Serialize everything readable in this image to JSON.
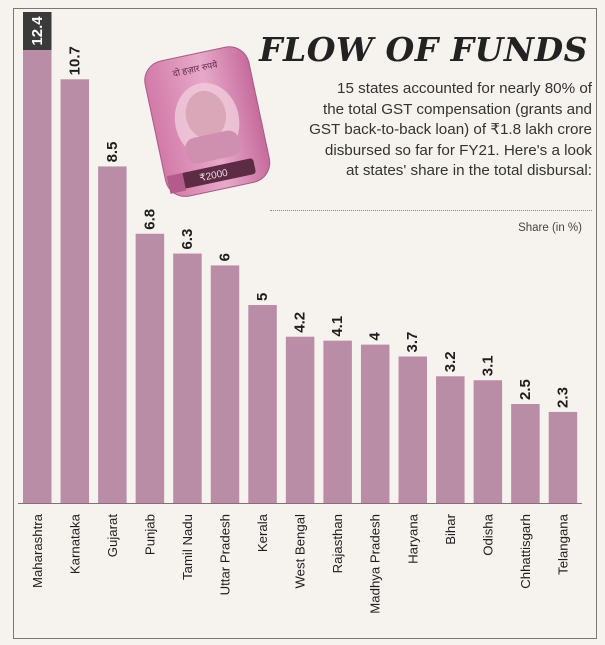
{
  "header": {
    "title": "FLOW OF FUNDS",
    "subtitle_lines": [
      "15 states accounted for nearly 80% of",
      "the total GST compensation (grants and",
      "GST back-to-back loan) of ₹1.8 lakh crore",
      "disbursed so far for FY21. Here's a look",
      "at states' share in the total disbursal:"
    ],
    "unit_label": "Share (in %)",
    "banknote_text": [
      "दो हज़ार रुपये",
      "₹2000"
    ]
  },
  "colors": {
    "background": "#f6f2ee",
    "bar": "#ba8da6",
    "bar_label_bg": "#3a3a3a"
  },
  "chart_data": {
    "type": "bar",
    "title": "FLOW OF FUNDS",
    "ylabel": "Share (in %)",
    "xlabel": "",
    "ylim": [
      0,
      12.4
    ],
    "grid": false,
    "categories": [
      "Maharashtra",
      "Karnataka",
      "Gujarat",
      "Punjab",
      "Tamil Nadu",
      "Uttar Pradesh",
      "Kerala",
      "West Bengal",
      "Rajasthan",
      "Madhya Pradesh",
      "Haryana",
      "Bihar",
      "Odisha",
      "Chhattisgarh",
      "Telangana"
    ],
    "values": [
      12.4,
      10.7,
      8.5,
      6.8,
      6.3,
      6,
      5,
      4.2,
      4.1,
      4,
      3.7,
      3.2,
      3.1,
      2.5,
      2.3
    ],
    "value_labels": [
      "12.4",
      "10.7",
      "8.5",
      "6.8",
      "6.3",
      "6",
      "5",
      "4.2",
      "4.1",
      "4",
      "3.7",
      "3.2",
      "3.1",
      "2.5",
      "2.3"
    ]
  }
}
